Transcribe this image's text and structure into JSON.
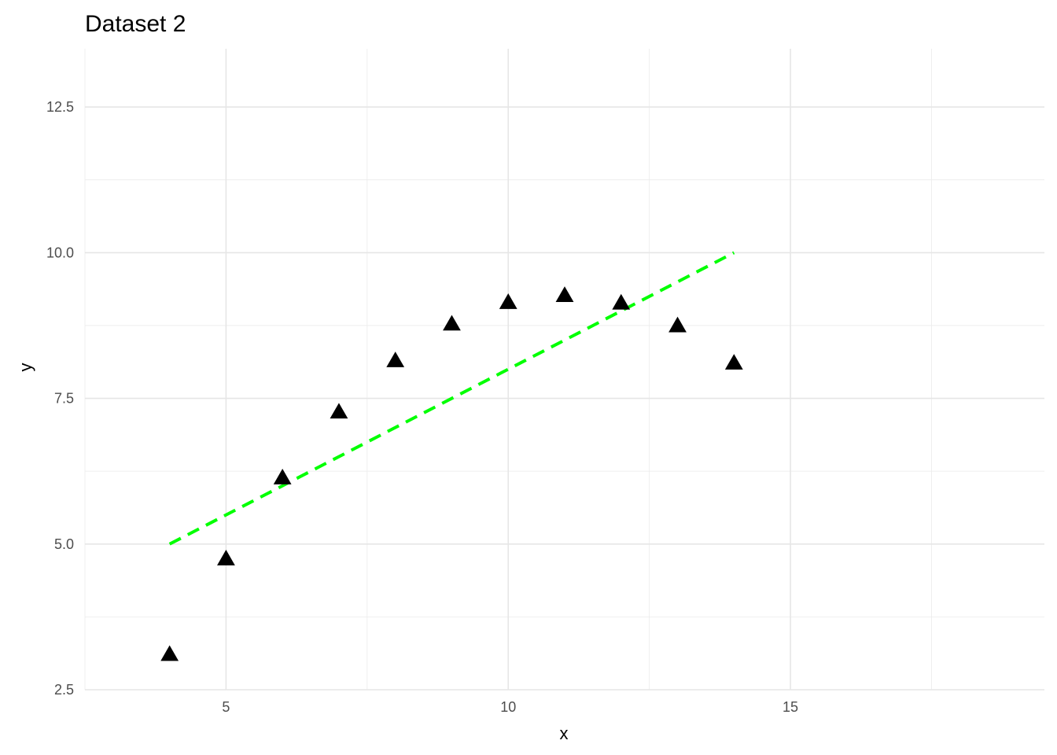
{
  "chart_data": {
    "type": "scatter",
    "title": "Dataset 2",
    "xlabel": "x",
    "ylabel": "y",
    "xlim": [
      2.5,
      19.5
    ],
    "ylim": [
      2.5,
      13.5
    ],
    "x_major_ticks": [
      5,
      10,
      15
    ],
    "x_minor_ticks": [
      2.5,
      7.5,
      12.5,
      17.5
    ],
    "x_tick_labels": [
      "5",
      "10",
      "15"
    ],
    "y_major_ticks": [
      2.5,
      5.0,
      7.5,
      10.0,
      12.5
    ],
    "y_minor_ticks": [
      3.75,
      6.25,
      8.75,
      11.25
    ],
    "y_tick_labels": [
      "2.5",
      "5.0",
      "7.5",
      "10.0",
      "12.5"
    ],
    "grid": true,
    "legend": "none",
    "series": [
      {
        "marker": "triangle",
        "color": "#000000",
        "x": [
          4,
          5,
          6,
          7,
          8,
          9,
          10,
          11,
          12,
          13,
          14
        ],
        "y": [
          3.1,
          4.74,
          6.13,
          7.26,
          8.14,
          8.77,
          9.14,
          9.26,
          9.13,
          8.74,
          8.1
        ]
      }
    ],
    "fit_line": {
      "style": "dashed",
      "color": "#00ff00",
      "x": [
        4,
        14
      ],
      "y": [
        5.0,
        10.0
      ]
    }
  }
}
